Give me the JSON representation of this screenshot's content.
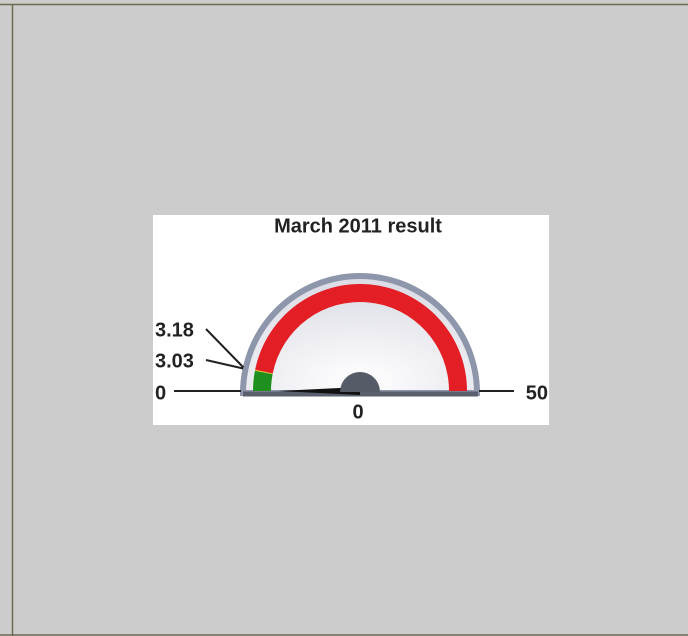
{
  "chart_data": {
    "type": "gauge",
    "title": "March 2011 result",
    "min": 0,
    "max": 50,
    "value": 0,
    "value_label": "0",
    "ticks": [
      0,
      3.03,
      3.18,
      50
    ],
    "bands": [
      {
        "from": 0,
        "to": 3.03,
        "color": "#1f8f1f"
      },
      {
        "from": 3.03,
        "to": 3.18,
        "color": "#e6c619"
      },
      {
        "from": 3.18,
        "to": 50,
        "color": "#e31e24"
      }
    ],
    "needle_color": "#111111"
  }
}
